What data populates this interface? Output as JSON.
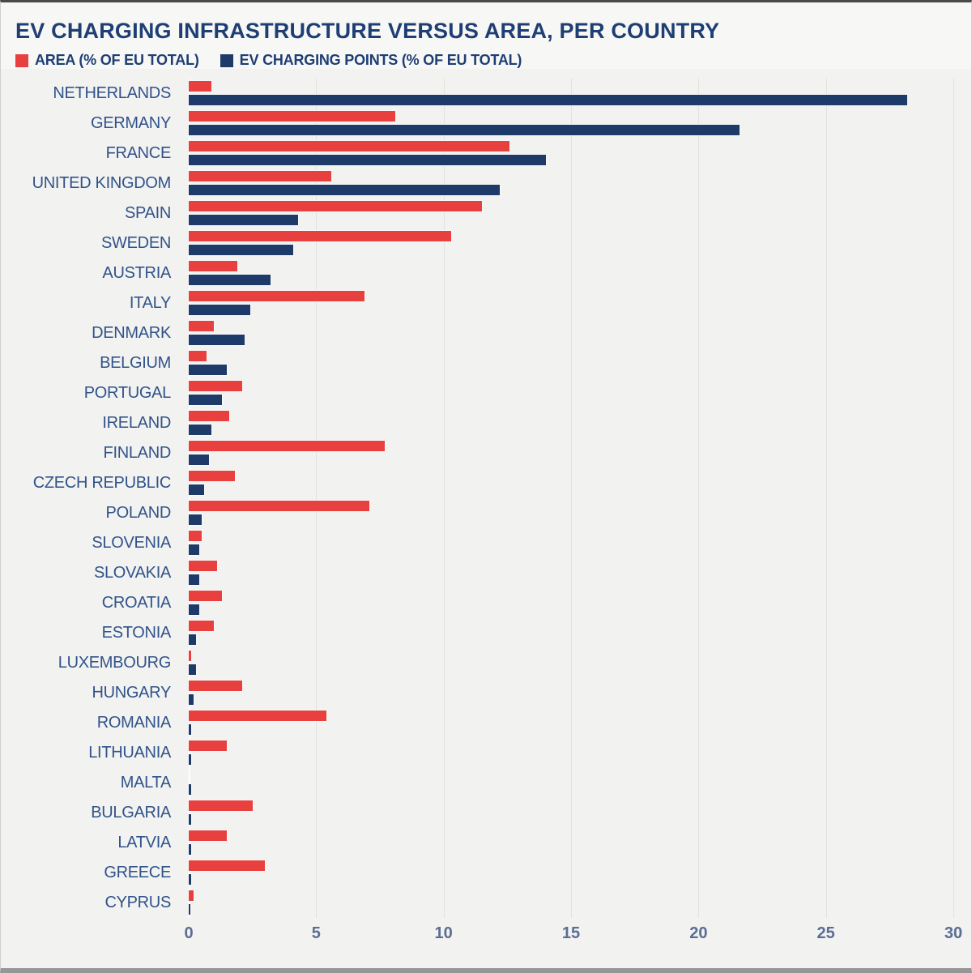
{
  "header": {
    "title": "EV CHARGING INFRASTRUCTURE VERSUS AREA, PER COUNTRY",
    "legend": [
      {
        "label": "AREA (% OF EU TOTAL)",
        "color": "#e8403f"
      },
      {
        "label": "EV CHARGING POINTS (% OF EU TOTAL)",
        "color": "#1e3a68"
      }
    ]
  },
  "colors": {
    "area_bar": "#e8403f",
    "ev_bar": "#1e3a68",
    "title_text": "#1e3e74",
    "label_text": "#31538a",
    "tick_text": "#5a6d94",
    "background": "#f2f2f0"
  },
  "chart_data": {
    "type": "bar",
    "orientation": "horizontal",
    "title": "EV CHARGING INFRASTRUCTURE VERSUS AREA, PER COUNTRY",
    "xlabel": "",
    "ylabel": "",
    "xlim": [
      0,
      30
    ],
    "x_ticks": [
      "0",
      "5",
      "10",
      "15",
      "20",
      "25",
      "30"
    ],
    "grid": true,
    "legend_position": "top",
    "categories": [
      "NETHERLANDS",
      "GERMANY",
      "FRANCE",
      "UNITED KINGDOM",
      "SPAIN",
      "SWEDEN",
      "AUSTRIA",
      "ITALY",
      "DENMARK",
      "BELGIUM",
      "PORTUGAL",
      "IRELAND",
      "FINLAND",
      "CZECH REPUBLIC",
      "POLAND",
      "SLOVENIA",
      "SLOVAKIA",
      "CROATIA",
      "ESTONIA",
      "LUXEMBOURG",
      "HUNGARY",
      "ROMANIA",
      "LITHUANIA",
      "MALTA",
      "BULGARIA",
      "LATVIA",
      "GREECE",
      "CYPRUS"
    ],
    "series": [
      {
        "name": "AREA (% OF EU TOTAL)",
        "color": "#e8403f",
        "values": [
          0.9,
          8.1,
          12.6,
          5.6,
          11.5,
          10.3,
          1.9,
          6.9,
          1.0,
          0.7,
          2.1,
          1.6,
          7.7,
          1.8,
          7.1,
          0.5,
          1.1,
          1.3,
          1.0,
          0.1,
          2.1,
          5.4,
          1.5,
          0.0,
          2.5,
          1.5,
          3.0,
          0.2
        ]
      },
      {
        "name": "EV CHARGING POINTS (% OF EU TOTAL)",
        "color": "#1e3a68",
        "values": [
          28.2,
          21.6,
          14.0,
          12.2,
          4.3,
          4.1,
          3.2,
          2.4,
          2.2,
          1.5,
          1.3,
          0.9,
          0.8,
          0.6,
          0.5,
          0.4,
          0.4,
          0.4,
          0.3,
          0.3,
          0.2,
          0.1,
          0.1,
          0.1,
          0.1,
          0.1,
          0.1,
          0.05
        ]
      }
    ]
  }
}
